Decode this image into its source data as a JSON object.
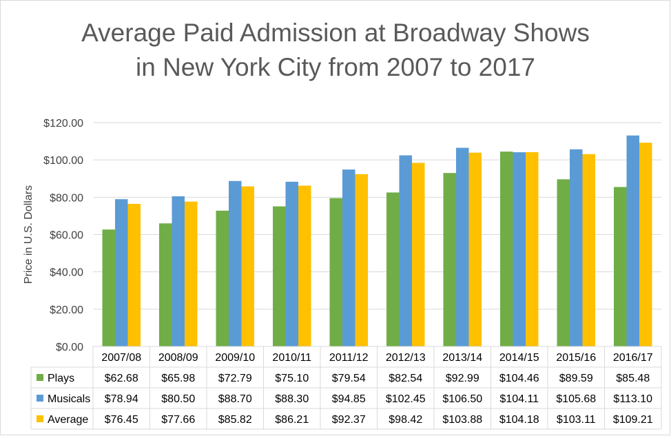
{
  "chart_data": {
    "type": "bar",
    "title_lines": [
      "Average Paid Admission at Broadway Shows",
      "in New York City from 2007 to 2017"
    ],
    "xlabel": "",
    "ylabel": "Price in U.S. Dollars",
    "ylim": [
      0,
      120
    ],
    "y_ticks": [
      0,
      20,
      40,
      60,
      80,
      100,
      120
    ],
    "y_tick_labels": [
      "$0.00",
      "$20.00",
      "$40.00",
      "$60.00",
      "$80.00",
      "$100.00",
      "$120.00"
    ],
    "grid": true,
    "legend": "data-table",
    "categories": [
      "2007/08",
      "2008/09",
      "2009/10",
      "2010/11",
      "2011/12",
      "2012/13",
      "2013/14",
      "2014/15",
      "2015/16",
      "2016/17"
    ],
    "series": [
      {
        "name": "Plays",
        "color": "#70ad47",
        "values": [
          62.68,
          65.98,
          72.79,
          75.1,
          79.54,
          82.54,
          92.99,
          104.46,
          89.59,
          85.48
        ],
        "labels": [
          "$62.68",
          "$65.98",
          "$72.79",
          "$75.10",
          "$79.54",
          "$82.54",
          "$92.99",
          "$104.46",
          "$89.59",
          "$85.48"
        ]
      },
      {
        "name": "Musicals",
        "color": "#5b9bd5",
        "values": [
          78.94,
          80.5,
          88.7,
          88.3,
          94.85,
          102.45,
          106.5,
          104.11,
          105.68,
          113.1
        ],
        "labels": [
          "$78.94",
          "$80.50",
          "$88.70",
          "$88.30",
          "$94.85",
          "$102.45",
          "$106.50",
          "$104.11",
          "$105.68",
          "$113.10"
        ]
      },
      {
        "name": "Average",
        "color": "#ffc000",
        "values": [
          76.45,
          77.66,
          85.82,
          86.21,
          92.37,
          98.42,
          103.88,
          104.18,
          103.11,
          109.21
        ],
        "labels": [
          "$76.45",
          "$77.66",
          "$85.82",
          "$86.21",
          "$92.37",
          "$98.42",
          "$103.88",
          "$104.18",
          "$103.11",
          "$109.21"
        ]
      }
    ]
  }
}
